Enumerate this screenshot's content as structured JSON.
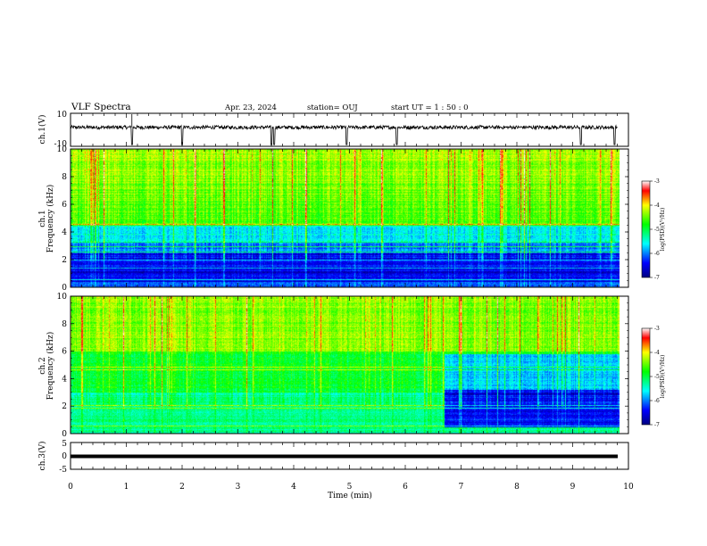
{
  "header": {
    "title": "VLF Spectra",
    "date": "Apr. 23, 2024",
    "station": "station= OUJ",
    "start": "start  UT =   1 : 50 : 0"
  },
  "chart_data": [
    {
      "type": "line",
      "id": "ch1-waveform",
      "ylabel": "ch.1(V)",
      "ylim": [
        -10,
        10
      ],
      "ytick_labels": [
        "10",
        "-10"
      ],
      "baseline": 1.5,
      "dips": [
        1.1,
        2.0,
        3.6,
        3.65,
        4.95,
        5.85,
        9.15,
        9.75
      ]
    },
    {
      "type": "heatmap",
      "id": "ch1-spectrogram",
      "ylabel_line1": "ch.1",
      "ylabel_line2": "Frequency (kHz)",
      "ylim": [
        0,
        10
      ],
      "yticks": [
        "0",
        "2",
        "4",
        "6",
        "8",
        "10"
      ],
      "colorbar": {
        "label": "log(PSD)(V²/Hz)",
        "ticks": [
          "-3",
          "-4",
          "-5",
          "-6",
          "-7"
        ],
        "range": [
          -7,
          -3
        ]
      },
      "lines_khz": [
        0.6,
        1.4,
        2.0,
        2.6,
        3.0,
        3.3,
        4.6
      ]
    },
    {
      "type": "heatmap",
      "id": "ch2-spectrogram",
      "ylabel_line1": "ch.2",
      "ylabel_line2": "Frequency (kHz)",
      "ylim": [
        0,
        10
      ],
      "yticks": [
        "0",
        "2",
        "4",
        "6",
        "8",
        "10"
      ],
      "colorbar": {
        "label": "log(PSD)(V²/Hz)",
        "ticks": [
          "-3",
          "-4",
          "-5",
          "-6",
          "-7"
        ],
        "range": [
          -7,
          -3
        ]
      },
      "change_min": 6.7,
      "lines_khz": [
        0.6,
        1.9,
        2.1,
        4.7,
        4.9
      ]
    },
    {
      "type": "line",
      "id": "ch3-waveform",
      "ylabel": "ch.3(V)",
      "ylim": [
        -5,
        5
      ],
      "ytick_labels": [
        "5",
        "0",
        "-5"
      ],
      "baseline": -0.8
    }
  ],
  "xaxis": {
    "label": "Time  (min)",
    "xlim": [
      0,
      10
    ],
    "ticks": [
      "0",
      "1",
      "2",
      "3",
      "4",
      "5",
      "6",
      "7",
      "8",
      "9",
      "10"
    ]
  }
}
